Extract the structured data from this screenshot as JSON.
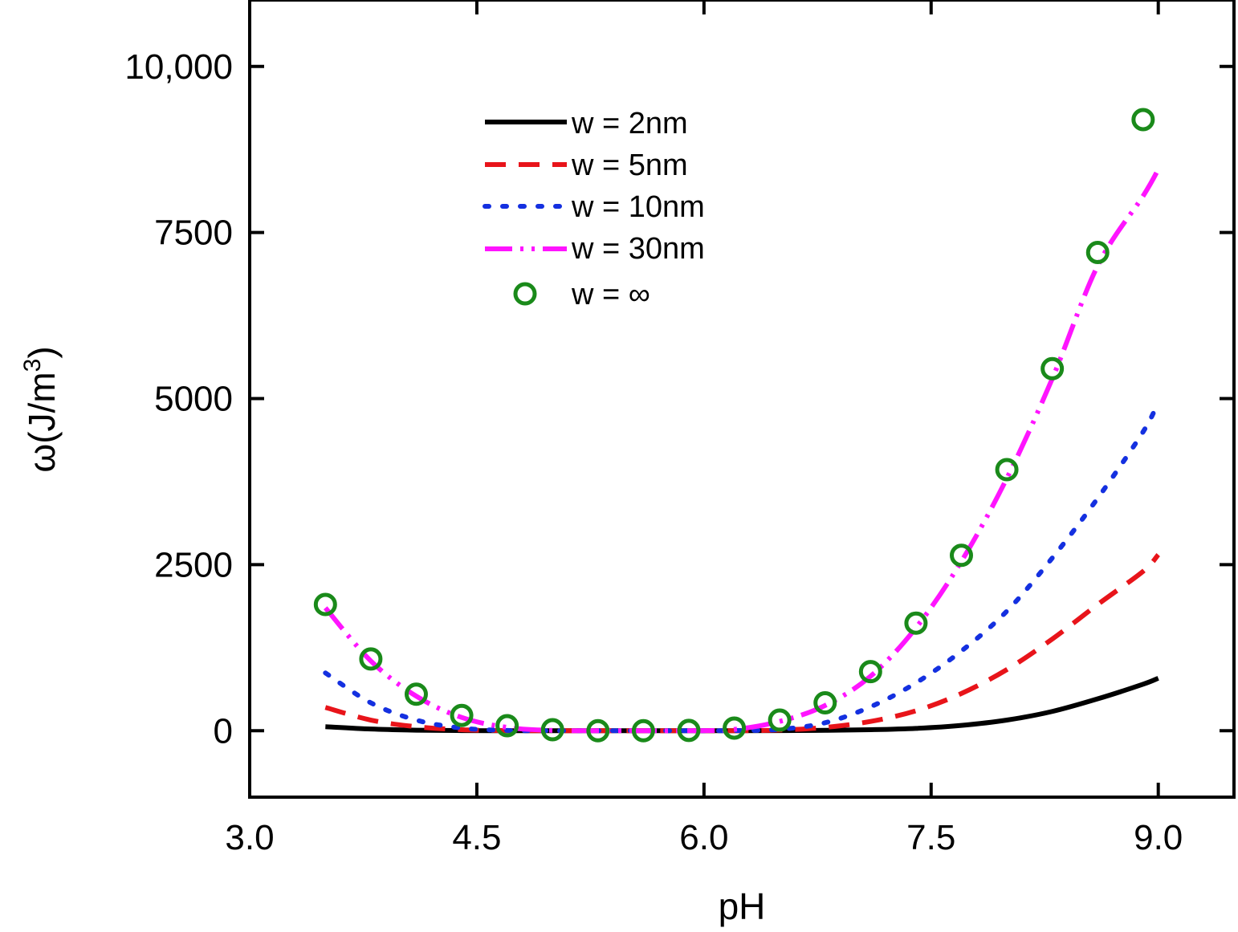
{
  "chart_data": {
    "type": "line",
    "title": "",
    "xlabel": "pH",
    "ylabel_main": "ω(J/m",
    "ylabel_sup": "3",
    "ylabel_close": ")",
    "xlim": [
      3.0,
      9.5
    ],
    "ylim": [
      -1000,
      11000
    ],
    "xticks": [
      {
        "value": 3.0,
        "label": "3.0"
      },
      {
        "value": 4.5,
        "label": "4.5"
      },
      {
        "value": 6.0,
        "label": "6.0"
      },
      {
        "value": 7.5,
        "label": "7.5"
      },
      {
        "value": 9.0,
        "label": "9.0"
      }
    ],
    "yticks": [
      {
        "value": 0,
        "label": "0"
      },
      {
        "value": 2500,
        "label": "2500"
      },
      {
        "value": 5000,
        "label": "5000"
      },
      {
        "value": 7500,
        "label": "7500"
      },
      {
        "value": 10000,
        "label": "10,000"
      }
    ],
    "legend_position": "top-center",
    "series": [
      {
        "name": "w = 2nm",
        "style": "solid",
        "color": "#000000",
        "x": [
          3.5,
          3.8,
          4.1,
          4.4,
          4.7,
          5.0,
          5.3,
          5.6,
          5.9,
          6.2,
          6.5,
          6.8,
          7.1,
          7.4,
          7.7,
          8.0,
          8.3,
          8.6,
          8.9,
          9.0
        ],
        "y": [
          60,
          25,
          8,
          2,
          0,
          0,
          0,
          0,
          0,
          0,
          2,
          6,
          15,
          35,
          80,
          160,
          290,
          480,
          700,
          790
        ]
      },
      {
        "name": "w = 5nm",
        "style": "dashed",
        "color": "#e8141a",
        "x": [
          3.5,
          3.8,
          4.1,
          4.4,
          4.7,
          5.0,
          5.3,
          5.6,
          5.9,
          6.2,
          6.5,
          6.8,
          7.1,
          7.4,
          7.7,
          8.0,
          8.3,
          8.6,
          8.9,
          9.0
        ],
        "y": [
          350,
          160,
          60,
          15,
          2,
          0,
          0,
          0,
          0,
          0,
          10,
          50,
          140,
          300,
          560,
          920,
          1380,
          1900,
          2400,
          2650
        ]
      },
      {
        "name": "w = 10nm",
        "style": "dotted",
        "color": "#1430e0",
        "x": [
          3.5,
          3.8,
          4.1,
          4.4,
          4.7,
          5.0,
          5.3,
          5.6,
          5.9,
          6.2,
          6.5,
          6.8,
          7.1,
          7.4,
          7.7,
          8.0,
          8.3,
          8.6,
          8.9,
          9.0
        ],
        "y": [
          870,
          420,
          160,
          40,
          4,
          0,
          0,
          0,
          0,
          2,
          20,
          120,
          360,
          720,
          1200,
          1800,
          2600,
          3500,
          4500,
          4950
        ]
      },
      {
        "name": "w = 30nm",
        "style": "dashdotdot",
        "color": "#ff14ff",
        "x": [
          3.5,
          3.8,
          4.1,
          4.4,
          4.7,
          5.0,
          5.3,
          5.6,
          5.9,
          6.2,
          6.5,
          6.8,
          7.1,
          7.4,
          7.7,
          8.0,
          8.3,
          8.6,
          8.9,
          9.0
        ],
        "y": [
          1850,
          1050,
          520,
          200,
          50,
          5,
          0,
          0,
          0,
          20,
          140,
          380,
          820,
          1550,
          2550,
          3800,
          5300,
          7000,
          8050,
          8450
        ]
      },
      {
        "name": "w = ∞",
        "style": "markers",
        "color": "#1a8a1a",
        "x": [
          3.5,
          3.8,
          4.1,
          4.4,
          4.7,
          5.0,
          5.3,
          5.6,
          5.9,
          6.2,
          6.5,
          6.8,
          7.1,
          7.4,
          7.7,
          8.0,
          8.3,
          8.6,
          8.9
        ],
        "y": [
          1900,
          1080,
          550,
          230,
          75,
          15,
          0,
          0,
          5,
          40,
          160,
          420,
          890,
          1620,
          2640,
          3930,
          5450,
          7200,
          9200
        ]
      }
    ]
  }
}
